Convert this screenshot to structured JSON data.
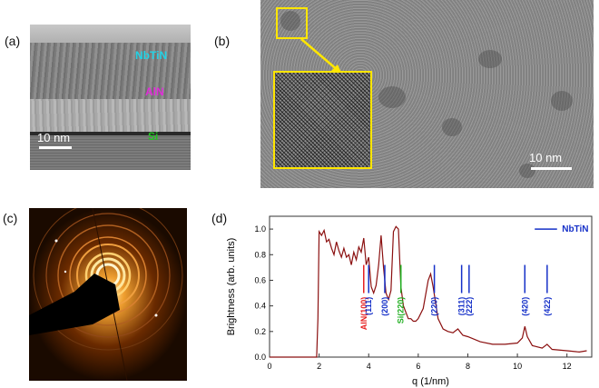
{
  "panels": {
    "a": {
      "label": "(a)",
      "tags": {
        "nbtin": "NbTiN",
        "aln": "AlN",
        "si": "Si"
      },
      "scale": "10 nm",
      "colors": {
        "nbtin": "#21d3e6",
        "aln": "#e02bd9",
        "si": "#21c421"
      }
    },
    "b": {
      "label": "(b)",
      "scale": "10 nm",
      "box_color": "#ffe600"
    },
    "c": {
      "label": "(c)"
    },
    "d": {
      "label": "(d)"
    }
  },
  "chart_data": {
    "type": "line",
    "xlabel": "q (1/nm)",
    "ylabel": "Brightness (arb. units)",
    "xlim": [
      0,
      13
    ],
    "ylim": [
      0,
      1.1
    ],
    "xticks": [
      "0",
      "2",
      "4",
      "6",
      "8",
      "10",
      "12"
    ],
    "yticks": [
      "0.0",
      "0.2",
      "0.4",
      "0.6",
      "0.8",
      "1.0"
    ],
    "legend": "NbTiN",
    "line_color": "#8b1010",
    "legend_color": "#1530c8",
    "x": [
      0,
      1.9,
      1.95,
      2.0,
      2.1,
      2.2,
      2.3,
      2.4,
      2.5,
      2.6,
      2.7,
      2.8,
      2.9,
      3.0,
      3.1,
      3.2,
      3.3,
      3.4,
      3.5,
      3.6,
      3.7,
      3.8,
      3.9,
      4.0,
      4.1,
      4.2,
      4.3,
      4.4,
      4.5,
      4.6,
      4.7,
      4.8,
      4.9,
      5.0,
      5.1,
      5.2,
      5.3,
      5.4,
      5.5,
      5.6,
      5.7,
      5.8,
      5.9,
      6.0,
      6.2,
      6.4,
      6.5,
      6.6,
      6.8,
      7.0,
      7.2,
      7.4,
      7.6,
      7.8,
      8.0,
      8.5,
      9.0,
      9.5,
      10.0,
      10.2,
      10.3,
      10.4,
      10.6,
      11.0,
      11.2,
      11.4,
      12.0,
      12.5,
      12.8
    ],
    "y": [
      0.0,
      0.0,
      0.3,
      0.98,
      0.95,
      0.99,
      0.9,
      0.92,
      0.85,
      0.8,
      0.9,
      0.83,
      0.78,
      0.85,
      0.78,
      0.8,
      0.72,
      0.82,
      0.76,
      0.86,
      0.82,
      0.93,
      0.72,
      0.78,
      0.55,
      0.5,
      0.56,
      0.72,
      0.95,
      0.7,
      0.5,
      0.45,
      0.52,
      0.98,
      1.02,
      1.0,
      0.55,
      0.4,
      0.35,
      0.3,
      0.3,
      0.28,
      0.28,
      0.3,
      0.38,
      0.6,
      0.65,
      0.55,
      0.3,
      0.22,
      0.2,
      0.19,
      0.22,
      0.17,
      0.16,
      0.12,
      0.1,
      0.1,
      0.11,
      0.15,
      0.24,
      0.16,
      0.09,
      0.07,
      0.1,
      0.06,
      0.05,
      0.04,
      0.05
    ],
    "annotations": [
      {
        "text": "AlN(100)",
        "x": 3.8,
        "color": "#e62020"
      },
      {
        "text": "(111)",
        "x": 4.0,
        "color": "#1530c8"
      },
      {
        "text": "(200)",
        "x": 4.65,
        "color": "#1530c8"
      },
      {
        "text": "Si(220)",
        "x": 5.3,
        "color": "#1fae1f"
      },
      {
        "text": "(220)",
        "x": 6.65,
        "color": "#1530c8"
      },
      {
        "text": "(311)",
        "x": 7.75,
        "color": "#1530c8"
      },
      {
        "text": "(222)",
        "x": 8.05,
        "color": "#1530c8"
      },
      {
        "text": "(420)",
        "x": 10.3,
        "color": "#1530c8"
      },
      {
        "text": "(422)",
        "x": 11.2,
        "color": "#1530c8"
      }
    ]
  }
}
